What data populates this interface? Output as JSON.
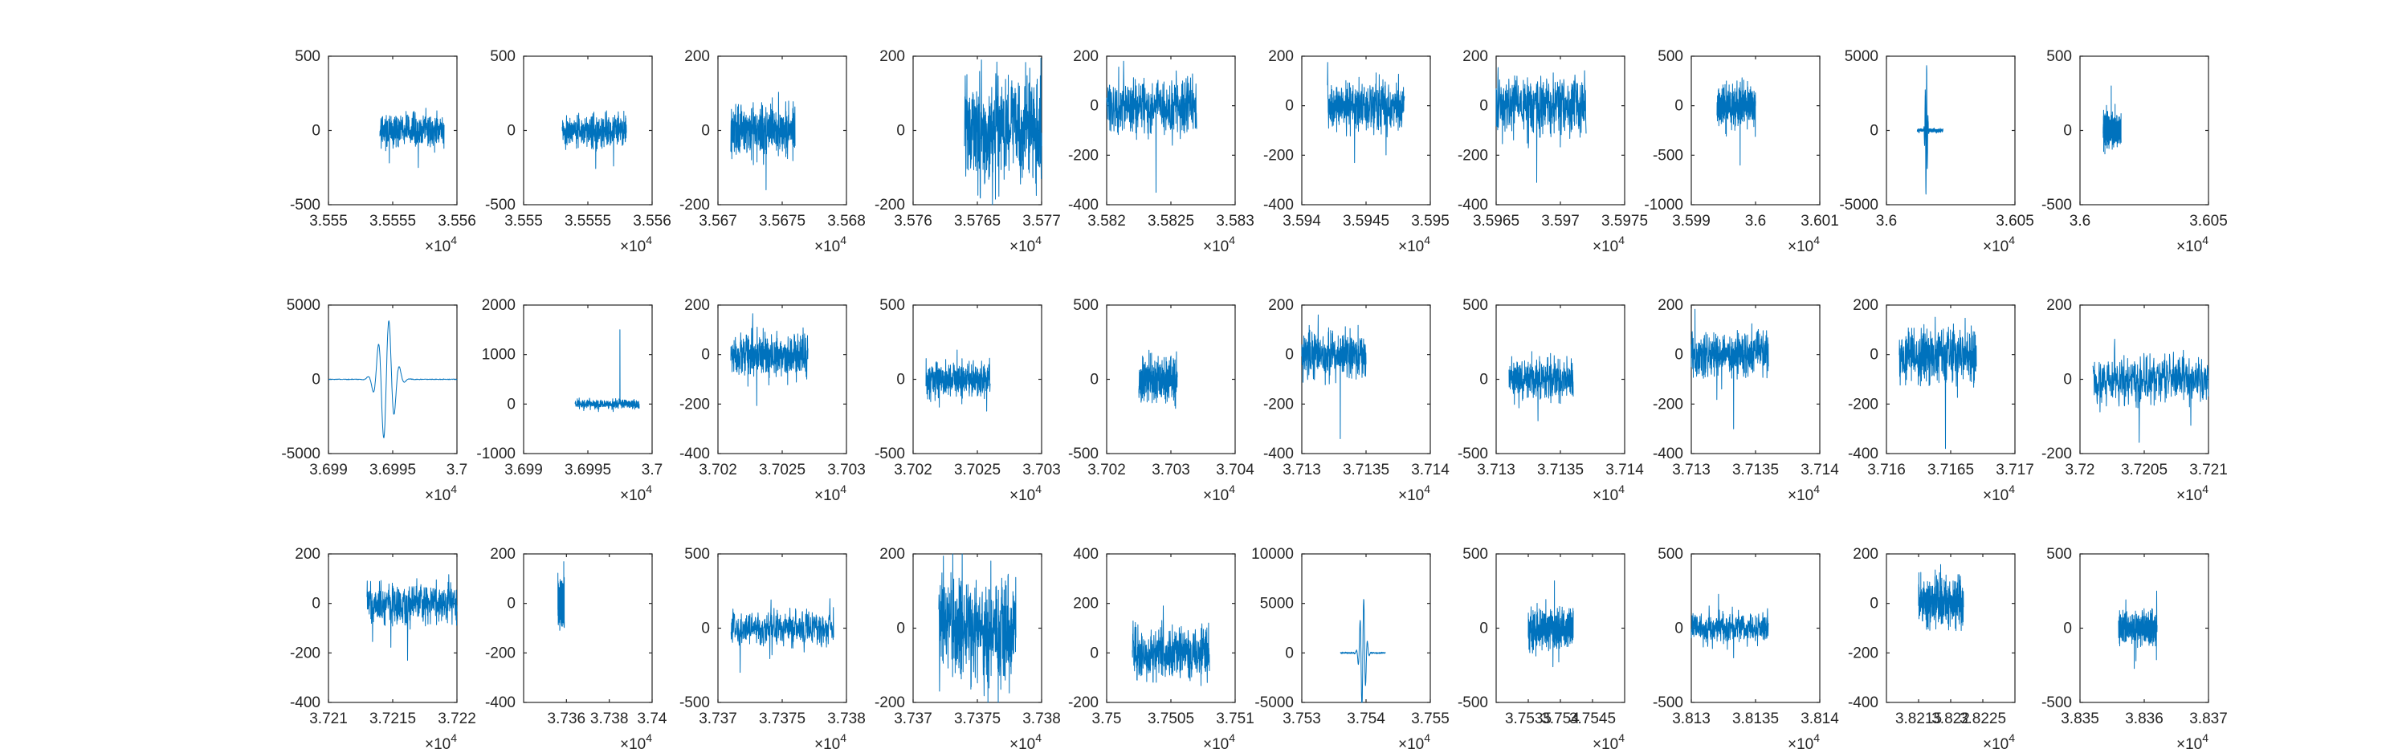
{
  "colors": {
    "trace": "#0072BD",
    "axes": "#262626",
    "background": "#ffffff"
  },
  "exponent_base": "×10",
  "exponent_power": "4",
  "chart_data": [
    {
      "type": "line",
      "id": "r1c1",
      "xlim": [
        3.555,
        3.556
      ],
      "ylim": [
        -500,
        500
      ],
      "xticks": [
        "3.555",
        "3.5555",
        "3.556"
      ],
      "yticks": [
        "-500",
        "0",
        "500"
      ],
      "signal": {
        "x_start": 3.5554,
        "x_end": 3.5559,
        "amplitude": 100,
        "spike": -250,
        "spike_pos": 0.6
      }
    },
    {
      "type": "line",
      "id": "r1c2",
      "xlim": [
        3.555,
        3.556
      ],
      "ylim": [
        -500,
        500
      ],
      "xticks": [
        "3.555",
        "3.5555",
        "3.556"
      ],
      "yticks": [
        "-500",
        "0",
        "500"
      ],
      "signal": {
        "x_start": 3.5553,
        "x_end": 3.5558,
        "amplitude": 100,
        "spike": -240,
        "spike_pos": 0.8
      }
    },
    {
      "type": "line",
      "id": "r1c3",
      "xlim": [
        3.567,
        3.568
      ],
      "ylim": [
        -200,
        200
      ],
      "xticks": [
        "3.567",
        "3.5675",
        "3.568"
      ],
      "yticks": [
        "-200",
        "0",
        "200"
      ],
      "signal": {
        "x_start": 3.5671,
        "x_end": 3.5676,
        "amplitude": 60,
        "spike": -160,
        "spike_pos": 0.55
      }
    },
    {
      "type": "line",
      "id": "r1c4",
      "xlim": [
        3.576,
        3.577
      ],
      "ylim": [
        -200,
        200
      ],
      "xticks": [
        "3.576",
        "3.5765",
        "3.577"
      ],
      "yticks": [
        "-200",
        "0",
        "200"
      ],
      "signal": {
        "x_start": 3.5764,
        "x_end": 3.577,
        "amplitude": 130,
        "spike": -185,
        "spike_pos": 0.4
      }
    },
    {
      "type": "line",
      "id": "r1c5",
      "xlim": [
        3.582,
        3.583
      ],
      "ylim": [
        -400,
        200
      ],
      "xticks": [
        "3.582",
        "3.5825",
        "3.583"
      ],
      "yticks": [
        "-400",
        "-200",
        "0",
        "200"
      ],
      "signal": {
        "x_start": 3.582,
        "x_end": 3.5827,
        "amplitude": 110,
        "spike": -350,
        "spike_pos": 0.55
      }
    },
    {
      "type": "line",
      "id": "r1c6",
      "xlim": [
        3.594,
        3.595
      ],
      "ylim": [
        -400,
        200
      ],
      "xticks": [
        "3.594",
        "3.5945",
        "3.595"
      ],
      "yticks": [
        "-400",
        "-200",
        "0",
        "200"
      ],
      "signal": {
        "x_start": 3.5942,
        "x_end": 3.5948,
        "amplitude": 90,
        "spike": -230,
        "spike_pos": 0.35
      }
    },
    {
      "type": "line",
      "id": "r1c7",
      "xlim": [
        3.5965,
        3.5975
      ],
      "ylim": [
        -400,
        200
      ],
      "xticks": [
        "3.5965",
        "3.597",
        "3.5975"
      ],
      "yticks": [
        "-400",
        "-200",
        "0",
        "200"
      ],
      "signal": {
        "x_start": 3.5965,
        "x_end": 3.5972,
        "amplitude": 110,
        "spike": -310,
        "spike_pos": 0.45
      }
    },
    {
      "type": "line",
      "id": "r1c8",
      "xlim": [
        3.599,
        3.601
      ],
      "ylim": [
        -1000,
        500
      ],
      "xticks": [
        "3.599",
        "3.6",
        "3.601"
      ],
      "yticks": [
        "-1000",
        "-500",
        "0",
        "500"
      ],
      "signal": {
        "x_start": 3.5994,
        "x_end": 3.6,
        "amplitude": 180,
        "spike": -600,
        "spike_pos": 0.6
      }
    },
    {
      "type": "line",
      "id": "r1c9",
      "xlim": [
        3.6,
        3.605
      ],
      "ylim": [
        -5000,
        5000
      ],
      "xticks": [
        "3.6",
        "3.605"
      ],
      "yticks": [
        "-5000",
        "0",
        "5000"
      ],
      "signal": {
        "x_start": 3.6012,
        "x_end": 3.6022,
        "amplitude": 300,
        "burst": 4600,
        "burst_pos": 0.35,
        "burst_width": 0.08
      }
    },
    {
      "type": "line",
      "id": "r1c10",
      "xlim": [
        3.6,
        3.605
      ],
      "ylim": [
        -500,
        500
      ],
      "xticks": [
        "3.6",
        "3.605"
      ],
      "yticks": [
        "-500",
        "0",
        "500"
      ],
      "signal": {
        "x_start": 3.6009,
        "x_end": 3.6016,
        "amplitude": 100,
        "spike": 300,
        "spike_pos": 0.45
      }
    },
    {
      "type": "line",
      "id": "r2c1",
      "xlim": [
        3.699,
        3.7
      ],
      "ylim": [
        -5000,
        5000
      ],
      "xticks": [
        "3.699",
        "3.6995",
        "3.7"
      ],
      "yticks": [
        "-5000",
        "0",
        "5000"
      ],
      "signal": {
        "x_start": 3.699,
        "x_end": 3.7,
        "amplitude": 60,
        "burst": 4200,
        "burst_pos": 0.45,
        "burst_width": 0.12
      }
    },
    {
      "type": "line",
      "id": "r2c2",
      "xlim": [
        3.699,
        3.7
      ],
      "ylim": [
        -1000,
        2000
      ],
      "xticks": [
        "3.699",
        "3.6995",
        "3.7"
      ],
      "yticks": [
        "-1000",
        "0",
        "1000",
        "2000"
      ],
      "signal": {
        "x_start": 3.6994,
        "x_end": 3.6999,
        "amplitude": 90,
        "spike": 1500,
        "spike_pos": 0.7
      }
    },
    {
      "type": "line",
      "id": "r2c3",
      "xlim": [
        3.702,
        3.703
      ],
      "ylim": [
        -400,
        200
      ],
      "xticks": [
        "3.702",
        "3.7025",
        "3.703"
      ],
      "yticks": [
        "-400",
        "-200",
        "0",
        "200"
      ],
      "signal": {
        "x_start": 3.7021,
        "x_end": 3.7027,
        "amplitude": 90,
        "spike": -310,
        "spike_pos": 0.5
      }
    },
    {
      "type": "line",
      "id": "r2c4",
      "xlim": [
        3.702,
        3.703
      ],
      "ylim": [
        -500,
        500
      ],
      "xticks": [
        "3.702",
        "3.7025",
        "3.703"
      ],
      "yticks": [
        "-500",
        "0",
        "500"
      ],
      "signal": {
        "x_start": 3.7021,
        "x_end": 3.7026,
        "amplitude": 110,
        "spike": -300,
        "spike_pos": 0.5
      }
    },
    {
      "type": "line",
      "id": "r2c5",
      "xlim": [
        3.702,
        3.704
      ],
      "ylim": [
        -500,
        500
      ],
      "xticks": [
        "3.702",
        "3.703",
        "3.704"
      ],
      "yticks": [
        "-500",
        "0",
        "500"
      ],
      "signal": {
        "x_start": 3.7025,
        "x_end": 3.7031,
        "amplitude": 130,
        "spike": -250,
        "spike_pos": 0.5
      }
    },
    {
      "type": "line",
      "id": "r2c6",
      "xlim": [
        3.713,
        3.714
      ],
      "ylim": [
        -400,
        200
      ],
      "xticks": [
        "3.713",
        "3.7135",
        "3.714"
      ],
      "yticks": [
        "-400",
        "-200",
        "0",
        "200"
      ],
      "signal": {
        "x_start": 3.713,
        "x_end": 3.7135,
        "amplitude": 90,
        "spike": -340,
        "spike_pos": 0.6
      }
    },
    {
      "type": "line",
      "id": "r2c7",
      "xlim": [
        3.713,
        3.714
      ],
      "ylim": [
        -500,
        500
      ],
      "xticks": [
        "3.713",
        "3.7135",
        "3.714"
      ],
      "yticks": [
        "-500",
        "0",
        "500"
      ],
      "signal": {
        "x_start": 3.7131,
        "x_end": 3.7136,
        "amplitude": 120,
        "spike": -280,
        "spike_pos": 0.45
      }
    },
    {
      "type": "line",
      "id": "r2c8",
      "xlim": [
        3.713,
        3.714
      ],
      "ylim": [
        -400,
        200
      ],
      "xticks": [
        "3.713",
        "3.7135",
        "3.714"
      ],
      "yticks": [
        "-400",
        "-200",
        "0",
        "200"
      ],
      "signal": {
        "x_start": 3.713,
        "x_end": 3.7136,
        "amplitude": 80,
        "spike": -300,
        "spike_pos": 0.55
      }
    },
    {
      "type": "line",
      "id": "r2c9",
      "xlim": [
        3.716,
        3.717
      ],
      "ylim": [
        -400,
        200
      ],
      "xticks": [
        "3.716",
        "3.7165",
        "3.717"
      ],
      "yticks": [
        "-400",
        "-200",
        "0",
        "200"
      ],
      "signal": {
        "x_start": 3.7161,
        "x_end": 3.7167,
        "amplitude": 110,
        "spike": -380,
        "spike_pos": 0.6
      }
    },
    {
      "type": "line",
      "id": "r2c10",
      "xlim": [
        3.72,
        3.721
      ],
      "ylim": [
        -200,
        200
      ],
      "xticks": [
        "3.72",
        "3.7205",
        "3.721"
      ],
      "yticks": [
        "-200",
        "0",
        "200"
      ],
      "signal": {
        "x_start": 3.7201,
        "x_end": 3.721,
        "amplitude": 60,
        "spike": -170,
        "spike_pos": 0.4
      }
    },
    {
      "type": "line",
      "id": "r3c1",
      "xlim": [
        3.721,
        3.722
      ],
      "ylim": [
        -400,
        200
      ],
      "xticks": [
        "3.721",
        "3.7215",
        "3.722"
      ],
      "yticks": [
        "-400",
        "-200",
        "0",
        "200"
      ],
      "signal": {
        "x_start": 3.7213,
        "x_end": 3.722,
        "amplitude": 80,
        "spike": -230,
        "spike_pos": 0.45
      }
    },
    {
      "type": "line",
      "id": "r3c2",
      "xlim": [
        3.734,
        3.74
      ],
      "ylim": [
        -400,
        200
      ],
      "xticks": [
        "3.736",
        "3.738",
        "3.74"
      ],
      "yticks": [
        "-400",
        "-200",
        "0",
        "200"
      ],
      "signal": {
        "x_start": 3.7356,
        "x_end": 3.7359,
        "amplitude": 80,
        "spike": -300,
        "spike_pos": 0.5
      }
    },
    {
      "type": "line",
      "id": "r3c3",
      "xlim": [
        3.737,
        3.738
      ],
      "ylim": [
        -500,
        500
      ],
      "xticks": [
        "3.737",
        "3.7375",
        "3.738"
      ],
      "yticks": [
        "-500",
        "0",
        "500"
      ],
      "signal": {
        "x_start": 3.7371,
        "x_end": 3.7379,
        "amplitude": 110,
        "spike": -180,
        "spike_pos": 0.4
      }
    },
    {
      "type": "line",
      "id": "r3c4",
      "xlim": [
        3.737,
        3.738
      ],
      "ylim": [
        -200,
        200
      ],
      "xticks": [
        "3.737",
        "3.7375",
        "3.738"
      ],
      "yticks": [
        "-200",
        "0",
        "200"
      ],
      "signal": {
        "x_start": 3.7372,
        "x_end": 3.7378,
        "amplitude": 130,
        "spike": -180,
        "spike_pos": 0.5
      }
    },
    {
      "type": "line",
      "id": "r3c5",
      "xlim": [
        3.75,
        3.751
      ],
      "ylim": [
        -200,
        400
      ],
      "xticks": [
        "3.75",
        "3.7505",
        "3.751"
      ],
      "yticks": [
        "-200",
        "0",
        "200",
        "400"
      ],
      "signal": {
        "x_start": 3.7502,
        "x_end": 3.7508,
        "amplitude": 100,
        "spike": 190,
        "spike_pos": 0.4
      }
    },
    {
      "type": "line",
      "id": "r3c6",
      "xlim": [
        3.753,
        3.755
      ],
      "ylim": [
        -5000,
        10000
      ],
      "xticks": [
        "3.753",
        "3.754",
        "3.755"
      ],
      "yticks": [
        "-5000",
        "0",
        "5000",
        "10000"
      ],
      "signal": {
        "x_start": 3.7536,
        "x_end": 3.7543,
        "amplitude": 150,
        "burst": 5800,
        "burst_pos": 0.5,
        "burst_width": 0.12
      }
    },
    {
      "type": "line",
      "id": "r3c7",
      "xlim": [
        3.753,
        3.755
      ],
      "ylim": [
        -500,
        500
      ],
      "xticks": [
        "3.7535",
        "3.754",
        "3.7545"
      ],
      "yticks": [
        "-500",
        "0",
        "500"
      ],
      "signal": {
        "x_start": 3.7535,
        "x_end": 3.7542,
        "amplitude": 130,
        "spike": -260,
        "spike_pos": 0.55
      }
    },
    {
      "type": "line",
      "id": "r3c8",
      "xlim": [
        3.813,
        3.814
      ],
      "ylim": [
        -500,
        500
      ],
      "xticks": [
        "3.813",
        "3.8135",
        "3.814"
      ],
      "yticks": [
        "-500",
        "0",
        "500"
      ],
      "signal": {
        "x_start": 3.813,
        "x_end": 3.8136,
        "amplitude": 90,
        "spike": -200,
        "spike_pos": 0.55
      }
    },
    {
      "type": "line",
      "id": "r3c9",
      "xlim": [
        3.821,
        3.823
      ],
      "ylim": [
        -400,
        200
      ],
      "xticks": [
        "3.8215",
        "3.822",
        "3.8225"
      ],
      "yticks": [
        "-400",
        "-200",
        "0",
        "200"
      ],
      "signal": {
        "x_start": 3.8215,
        "x_end": 3.8222,
        "amplitude": 90,
        "spike": -320,
        "spike_pos": 0.5
      }
    },
    {
      "type": "line",
      "id": "r3c10",
      "xlim": [
        3.835,
        3.837
      ],
      "ylim": [
        -500,
        500
      ],
      "xticks": [
        "3.835",
        "3.836",
        "3.837"
      ],
      "yticks": [
        "-500",
        "0",
        "500"
      ],
      "signal": {
        "x_start": 3.8356,
        "x_end": 3.8362,
        "amplitude": 100,
        "spike": -220,
        "spike_pos": 0.45
      }
    }
  ]
}
